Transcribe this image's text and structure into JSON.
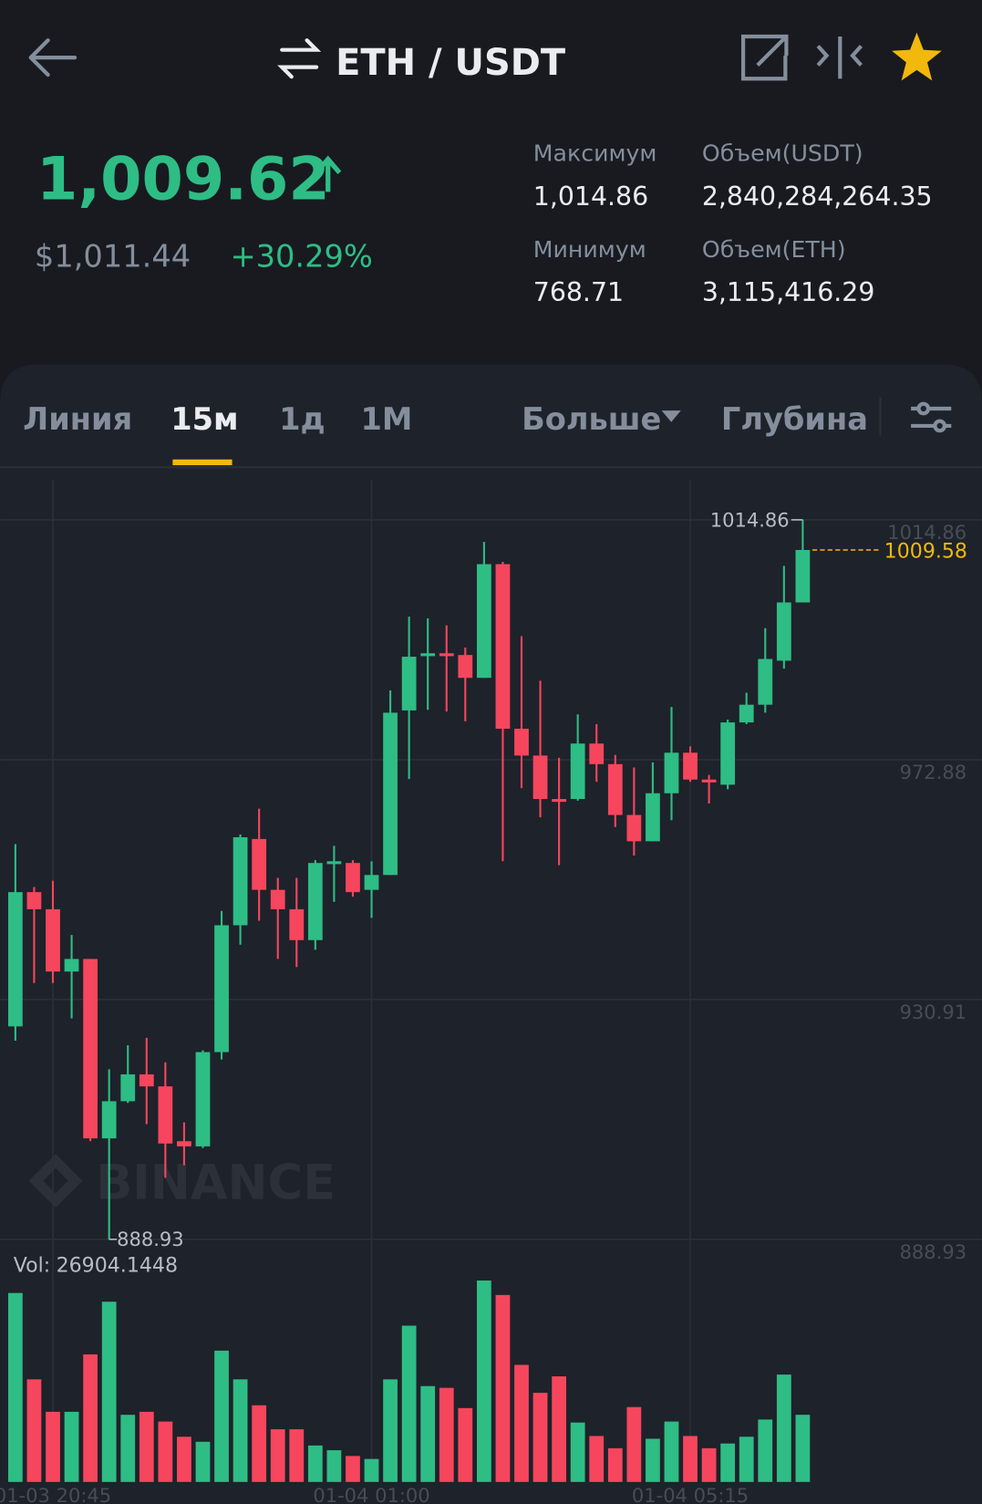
{
  "header": {
    "pair": "ETH / USDT"
  },
  "ticker": {
    "price": "1,009.62",
    "usd": "$1,011.44",
    "change": "+30.29%",
    "stats": [
      {
        "label": "Максимум",
        "value": "1,014.86"
      },
      {
        "label": "Объем(USDT)",
        "value": "2,840,284,264.35"
      },
      {
        "label": "Минимум",
        "value": "768.71"
      },
      {
        "label": "Объем(ETH)",
        "value": "3,115,416.29"
      }
    ]
  },
  "tabs": [
    "Линия",
    "15м",
    "1д",
    "1М",
    "Больше",
    "Глубина"
  ],
  "chart_data": {
    "type": "candlestick",
    "categories": [
      null,
      null,
      "01-03 20:45",
      null,
      null,
      null,
      null,
      null,
      null,
      null,
      null,
      null,
      null,
      null,
      null,
      null,
      null,
      null,
      null,
      "01-04 01:00",
      null,
      null,
      null,
      null,
      null,
      null,
      null,
      null,
      null,
      null,
      null,
      null,
      null,
      null,
      null,
      null,
      "01-04 05:15",
      null,
      null,
      null,
      null,
      null,
      null
    ],
    "open": [
      926.2,
      949.7,
      946.7,
      935.8,
      938.0,
      906.6,
      913.1,
      917.8,
      915.7,
      906.1,
      905.2,
      921.7,
      943.9,
      959.0,
      950.1,
      946.7,
      941.3,
      954.6,
      954.8,
      950.1,
      952.7,
      981.5,
      991.0,
      991.5,
      991.2,
      987.2,
      1007.1,
      978.3,
      973.6,
      966.0,
      966.0,
      975.7,
      972.1,
      963.2,
      958.6,
      967.0,
      974.1,
      969.4,
      968.5,
      979.4,
      982.5,
      990.2,
      1000.4
    ],
    "high": [
      958.1,
      950.6,
      951.7,
      942.2,
      938.0,
      918.7,
      922.9,
      924.2,
      919.9,
      909.4,
      922.0,
      946.4,
      959.8,
      964.3,
      952.2,
      952.2,
      955.3,
      957.8,
      955.3,
      955.1,
      985.0,
      997.9,
      997.6,
      996.4,
      992.5,
      1011.0,
      1007.5,
      994.5,
      986.7,
      973.2,
      980.8,
      979.1,
      973.7,
      971.5,
      972.4,
      982.1,
      975.2,
      970.2,
      979.9,
      984.6,
      995.9,
      1006.8,
      1014.86
    ],
    "low": [
      923.7,
      933.8,
      933.8,
      927.6,
      906.1,
      888.93,
      912.8,
      909.1,
      899.7,
      901.9,
      904.9,
      920.4,
      940.5,
      944.7,
      938.0,
      936.6,
      939.6,
      948.0,
      948.9,
      945.2,
      952.7,
      969.5,
      981.6,
      981.3,
      979.6,
      987.2,
      955.1,
      967.9,
      962.8,
      954.4,
      965.7,
      969.0,
      961.1,
      956.1,
      958.6,
      962.3,
      969.0,
      965.2,
      967.7,
      979.1,
      981.1,
      988.8,
      1000.4
    ],
    "close": [
      949.7,
      946.7,
      935.8,
      938.0,
      906.6,
      913.1,
      917.8,
      915.7,
      905.7,
      905.2,
      921.7,
      943.9,
      959.3,
      950.1,
      946.7,
      941.3,
      954.8,
      955.1,
      949.7,
      952.7,
      981.1,
      990.9,
      991.5,
      991.0,
      987.2,
      1007.1,
      978.3,
      973.6,
      966.0,
      965.5,
      975.7,
      972.1,
      963.2,
      958.6,
      967.0,
      974.1,
      969.4,
      968.9,
      979.4,
      982.5,
      990.5,
      1000.4,
      1009.58
    ],
    "volume": [
      75700,
      41100,
      28100,
      28100,
      51100,
      72200,
      26900,
      28100,
      24200,
      18100,
      16100,
      52600,
      41100,
      30700,
      21100,
      21100,
      14600,
      12700,
      10400,
      9200,
      41100,
      62600,
      38400,
      37700,
      29600,
      80700,
      74900,
      46900,
      35700,
      42300,
      23800,
      18400,
      13500,
      30000,
      17300,
      24200,
      18400,
      13500,
      15400,
      18100,
      25000,
      43000,
      26904.1448
    ],
    "volume_label": "Vol:",
    "ylim": [
      887.6,
      1021.9
    ],
    "yticks": [
      1014.86,
      972.88,
      930.91,
      888.93
    ],
    "grid": true,
    "high_marker": 1014.86,
    "low_marker": 888.93,
    "last_price": 1009.58,
    "watermark": "BINANCE",
    "up_color": "#2ebd85",
    "down_color": "#f6465d",
    "last_color": "#f0b90b"
  }
}
